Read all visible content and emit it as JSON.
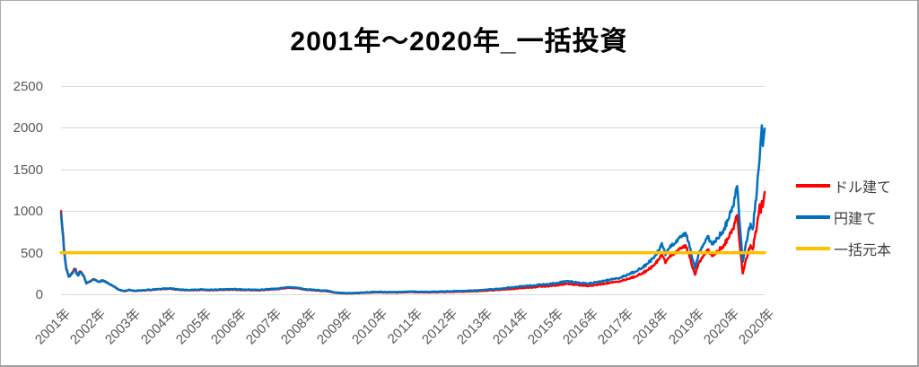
{
  "chart_data": {
    "type": "line",
    "title": "2001年〜2020年_一括投資",
    "x_tick_labels": [
      "2001年",
      "2002年",
      "2003年",
      "2004年",
      "2005年",
      "2006年",
      "2007年",
      "2008年",
      "2009年",
      "2010年",
      "2011年",
      "2012年",
      "2013年",
      "2014年",
      "2015年",
      "2016年",
      "2017年",
      "2018年",
      "2019年",
      "2020年",
      "2020年"
    ],
    "y_ticks": [
      0,
      500,
      1000,
      1500,
      2000,
      2500
    ],
    "ylim": [
      0,
      2500
    ],
    "x_range_years": [
      2001,
      2021
    ],
    "grid": true,
    "legend_position": "right",
    "axis_label_color": "#595959",
    "gridline_color": "#D9D9D9",
    "series": [
      {
        "name": "ドル建て",
        "color": "#FF0000",
        "points": [
          [
            2001.0,
            1000
          ],
          [
            2001.08,
            580
          ],
          [
            2001.15,
            310
          ],
          [
            2001.22,
            215
          ],
          [
            2001.3,
            250
          ],
          [
            2001.4,
            305
          ],
          [
            2001.48,
            235
          ],
          [
            2001.55,
            275
          ],
          [
            2001.65,
            220
          ],
          [
            2001.72,
            132
          ],
          [
            2001.85,
            158
          ],
          [
            2001.95,
            182
          ],
          [
            2002.05,
            152
          ],
          [
            2002.2,
            168
          ],
          [
            2002.35,
            132
          ],
          [
            2002.5,
            96
          ],
          [
            2002.65,
            54
          ],
          [
            2002.8,
            38
          ],
          [
            2002.95,
            53
          ],
          [
            2003.1,
            40
          ],
          [
            2003.3,
            45
          ],
          [
            2003.6,
            54
          ],
          [
            2003.9,
            64
          ],
          [
            2004.1,
            68
          ],
          [
            2004.35,
            54
          ],
          [
            2004.6,
            48
          ],
          [
            2004.9,
            53
          ],
          [
            2005.2,
            50
          ],
          [
            2005.6,
            52
          ],
          [
            2005.9,
            56
          ],
          [
            2006.2,
            52
          ],
          [
            2006.6,
            48
          ],
          [
            2006.9,
            56
          ],
          [
            2007.2,
            66
          ],
          [
            2007.5,
            78
          ],
          [
            2007.8,
            66
          ],
          [
            2008.0,
            54
          ],
          [
            2008.3,
            44
          ],
          [
            2008.6,
            36
          ],
          [
            2008.8,
            18
          ],
          [
            2009.0,
            13
          ],
          [
            2009.3,
            11
          ],
          [
            2009.6,
            18
          ],
          [
            2010.0,
            25
          ],
          [
            2010.5,
            22
          ],
          [
            2011.0,
            27
          ],
          [
            2011.5,
            24
          ],
          [
            2012.0,
            29
          ],
          [
            2012.5,
            34
          ],
          [
            2013.0,
            42
          ],
          [
            2013.5,
            55
          ],
          [
            2014.0,
            72
          ],
          [
            2014.5,
            88
          ],
          [
            2015.0,
            105
          ],
          [
            2015.4,
            128
          ],
          [
            2015.7,
            112
          ],
          [
            2016.0,
            100
          ],
          [
            2016.3,
            118
          ],
          [
            2016.6,
            138
          ],
          [
            2016.9,
            158
          ],
          [
            2017.2,
            195
          ],
          [
            2017.5,
            245
          ],
          [
            2017.8,
            330
          ],
          [
            2018.0,
            420
          ],
          [
            2018.08,
            490
          ],
          [
            2018.18,
            375
          ],
          [
            2018.3,
            450
          ],
          [
            2018.45,
            490
          ],
          [
            2018.6,
            560
          ],
          [
            2018.75,
            590
          ],
          [
            2018.85,
            490
          ],
          [
            2018.95,
            320
          ],
          [
            2019.02,
            235
          ],
          [
            2019.15,
            400
          ],
          [
            2019.3,
            480
          ],
          [
            2019.4,
            540
          ],
          [
            2019.5,
            460
          ],
          [
            2019.65,
            520
          ],
          [
            2019.8,
            570
          ],
          [
            2019.95,
            660
          ],
          [
            2020.1,
            780
          ],
          [
            2020.22,
            950
          ],
          [
            2020.3,
            560
          ],
          [
            2020.38,
            250
          ],
          [
            2020.45,
            380
          ],
          [
            2020.52,
            480
          ],
          [
            2020.6,
            590
          ],
          [
            2020.66,
            540
          ],
          [
            2020.72,
            680
          ],
          [
            2020.78,
            820
          ],
          [
            2020.83,
            950
          ],
          [
            2020.86,
            1080
          ],
          [
            2020.89,
            980
          ],
          [
            2020.92,
            1120
          ],
          [
            2020.95,
            1050
          ],
          [
            2021.0,
            1230
          ]
        ]
      },
      {
        "name": "円建て",
        "color": "#0070C0",
        "points": [
          [
            2001.0,
            970
          ],
          [
            2001.08,
            560
          ],
          [
            2001.15,
            300
          ],
          [
            2001.22,
            210
          ],
          [
            2001.3,
            240
          ],
          [
            2001.4,
            290
          ],
          [
            2001.48,
            225
          ],
          [
            2001.55,
            265
          ],
          [
            2001.65,
            215
          ],
          [
            2001.72,
            130
          ],
          [
            2001.85,
            155
          ],
          [
            2001.95,
            180
          ],
          [
            2002.05,
            150
          ],
          [
            2002.2,
            165
          ],
          [
            2002.35,
            130
          ],
          [
            2002.5,
            95
          ],
          [
            2002.65,
            55
          ],
          [
            2002.8,
            40
          ],
          [
            2002.95,
            55
          ],
          [
            2003.1,
            42
          ],
          [
            2003.3,
            48
          ],
          [
            2003.6,
            58
          ],
          [
            2003.9,
            68
          ],
          [
            2004.1,
            72
          ],
          [
            2004.35,
            58
          ],
          [
            2004.6,
            52
          ],
          [
            2004.9,
            58
          ],
          [
            2005.2,
            55
          ],
          [
            2005.6,
            58
          ],
          [
            2005.9,
            62
          ],
          [
            2006.2,
            58
          ],
          [
            2006.6,
            54
          ],
          [
            2006.9,
            62
          ],
          [
            2007.2,
            72
          ],
          [
            2007.5,
            85
          ],
          [
            2007.8,
            72
          ],
          [
            2008.0,
            60
          ],
          [
            2008.3,
            50
          ],
          [
            2008.6,
            42
          ],
          [
            2008.8,
            22
          ],
          [
            2009.0,
            16
          ],
          [
            2009.3,
            14
          ],
          [
            2009.6,
            22
          ],
          [
            2010.0,
            30
          ],
          [
            2010.5,
            27
          ],
          [
            2011.0,
            33
          ],
          [
            2011.5,
            30
          ],
          [
            2012.0,
            36
          ],
          [
            2012.5,
            42
          ],
          [
            2013.0,
            52
          ],
          [
            2013.5,
            68
          ],
          [
            2014.0,
            92
          ],
          [
            2014.5,
            110
          ],
          [
            2015.0,
            130
          ],
          [
            2015.4,
            160
          ],
          [
            2015.7,
            140
          ],
          [
            2016.0,
            130
          ],
          [
            2016.3,
            150
          ],
          [
            2016.6,
            175
          ],
          [
            2016.9,
            200
          ],
          [
            2017.2,
            250
          ],
          [
            2017.5,
            310
          ],
          [
            2017.8,
            420
          ],
          [
            2018.0,
            530
          ],
          [
            2018.08,
            615
          ],
          [
            2018.18,
            470
          ],
          [
            2018.3,
            560
          ],
          [
            2018.45,
            610
          ],
          [
            2018.6,
            700
          ],
          [
            2018.75,
            740
          ],
          [
            2018.85,
            620
          ],
          [
            2018.95,
            420
          ],
          [
            2019.02,
            310
          ],
          [
            2019.15,
            520
          ],
          [
            2019.3,
            620
          ],
          [
            2019.4,
            700
          ],
          [
            2019.5,
            600
          ],
          [
            2019.65,
            680
          ],
          [
            2019.8,
            750
          ],
          [
            2019.95,
            880
          ],
          [
            2020.1,
            1050
          ],
          [
            2020.22,
            1300
          ],
          [
            2020.3,
            800
          ],
          [
            2020.38,
            390
          ],
          [
            2020.45,
            560
          ],
          [
            2020.52,
            700
          ],
          [
            2020.6,
            850
          ],
          [
            2020.66,
            780
          ],
          [
            2020.72,
            1000
          ],
          [
            2020.78,
            1250
          ],
          [
            2020.83,
            1500
          ],
          [
            2020.88,
            1800
          ],
          [
            2020.92,
            2030
          ],
          [
            2020.95,
            1780
          ],
          [
            2021.0,
            1990
          ]
        ]
      },
      {
        "name": "一括元本",
        "color": "#FFC000",
        "points": [
          [
            2001.0,
            500
          ],
          [
            2021.0,
            500
          ]
        ]
      }
    ]
  }
}
